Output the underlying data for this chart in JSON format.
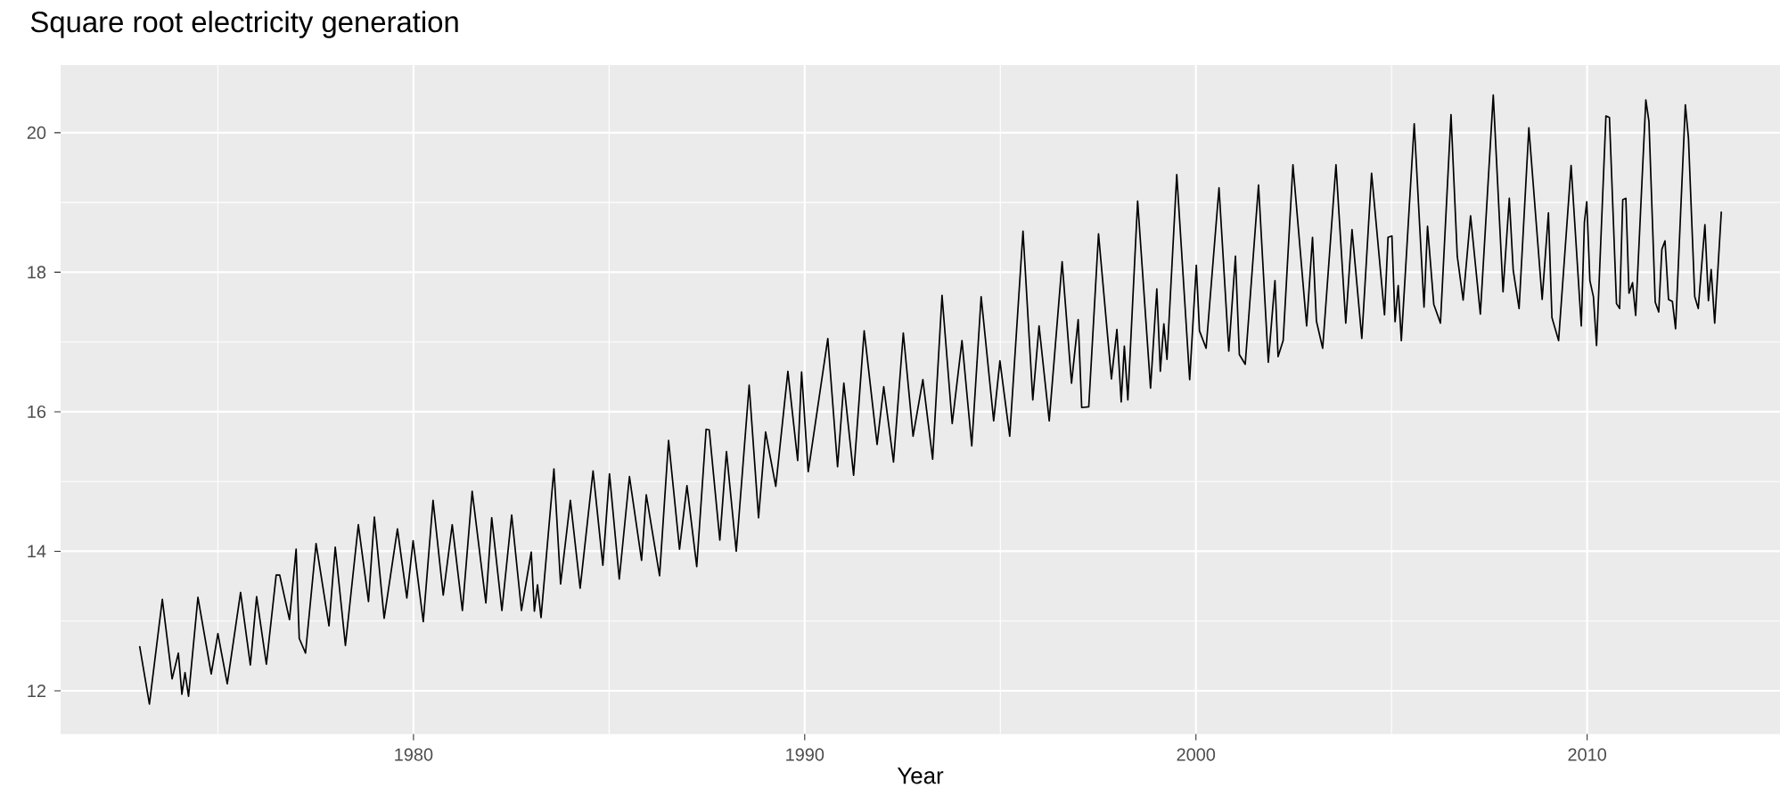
{
  "chart_data": {
    "type": "line",
    "title": "Square root electricity generation",
    "xlabel": "Year",
    "xlim": [
      1970.98,
      2014.93
    ],
    "ylim": [
      11.38,
      20.97
    ],
    "xticks": [
      1980,
      1990,
      2000,
      2010
    ],
    "yticks": [
      12,
      14,
      16,
      18,
      20
    ],
    "grid": true,
    "line_style": "solid",
    "color": "#000000",
    "x": [
      1973.0,
      1973.25,
      1973.58,
      1973.83,
      1973.99,
      1974.08,
      1974.16,
      1974.25,
      1974.49,
      1974.83,
      1975.0,
      1975.24,
      1975.58,
      1975.83,
      1975.99,
      1976.24,
      1976.49,
      1976.58,
      1976.83,
      1977.0,
      1977.08,
      1977.24,
      1977.51,
      1977.84,
      1978.0,
      1978.26,
      1978.59,
      1978.85,
      1979.0,
      1979.25,
      1979.59,
      1979.83,
      1979.99,
      1980.25,
      1980.5,
      1980.76,
      1980.99,
      1981.25,
      1981.5,
      1981.85,
      1982.0,
      1982.26,
      1982.51,
      1982.76,
      1983.01,
      1983.09,
      1983.17,
      1983.26,
      1983.59,
      1983.76,
      1984.01,
      1984.26,
      1984.59,
      1984.84,
      1985.01,
      1985.26,
      1985.52,
      1985.83,
      1985.95,
      1986.29,
      1986.52,
      1986.8,
      1986.99,
      1987.24,
      1987.48,
      1987.56,
      1987.83,
      1988.0,
      1988.25,
      1988.58,
      1988.82,
      1989.0,
      1989.26,
      1989.57,
      1989.82,
      1989.92,
      1990.09,
      1990.59,
      1990.84,
      1991.0,
      1991.25,
      1991.52,
      1991.85,
      1992.02,
      1992.27,
      1992.52,
      1992.77,
      1993.02,
      1993.27,
      1993.51,
      1993.77,
      1994.02,
      1994.27,
      1994.51,
      1994.83,
      1994.99,
      1995.24,
      1995.58,
      1995.83,
      1995.99,
      1996.25,
      1996.58,
      1996.82,
      1996.99,
      1997.08,
      1997.26,
      1997.51,
      1997.84,
      1997.98,
      1998.09,
      1998.17,
      1998.26,
      1998.51,
      1998.84,
      1999.0,
      1999.09,
      1999.18,
      1999.26,
      1999.51,
      1999.84,
      2000.01,
      2000.09,
      2000.26,
      2000.59,
      2000.84,
      2001.01,
      2001.11,
      2001.26,
      2001.6,
      2001.85,
      2002.02,
      2002.1,
      2002.23,
      2002.48,
      2002.83,
      2002.98,
      2003.08,
      2003.24,
      2003.58,
      2003.83,
      2003.99,
      2004.24,
      2004.49,
      2004.82,
      2004.91,
      2005.01,
      2005.09,
      2005.17,
      2005.25,
      2005.58,
      2005.83,
      2005.92,
      2006.08,
      2006.25,
      2006.52,
      2006.68,
      2006.83,
      2007.02,
      2007.27,
      2007.6,
      2007.85,
      2008.01,
      2008.11,
      2008.26,
      2008.51,
      2008.85,
      2009.01,
      2009.1,
      2009.27,
      2009.59,
      2009.85,
      2009.93,
      2009.99,
      2010.07,
      2010.16,
      2010.24,
      2010.48,
      2010.57,
      2010.75,
      2010.83,
      2010.91,
      2010.99,
      2011.07,
      2011.16,
      2011.24,
      2011.5,
      2011.58,
      2011.74,
      2011.83,
      2011.91,
      2011.99,
      2012.08,
      2012.18,
      2012.26,
      2012.51,
      2012.59,
      2012.75,
      2012.84,
      2013.01,
      2013.1,
      2013.17,
      2013.26,
      2013.43
    ],
    "values": [
      12.64,
      11.81,
      13.31,
      12.17,
      12.54,
      11.95,
      12.26,
      11.92,
      13.34,
      12.24,
      12.82,
      12.1,
      13.41,
      12.37,
      13.35,
      12.38,
      13.66,
      13.66,
      13.02,
      14.03,
      12.75,
      12.54,
      14.11,
      12.93,
      14.06,
      12.65,
      14.38,
      13.28,
      14.49,
      13.04,
      14.32,
      13.33,
      14.15,
      12.99,
      14.73,
      13.37,
      14.38,
      13.15,
      14.86,
      13.26,
      14.48,
      13.15,
      14.52,
      13.15,
      13.99,
      13.14,
      13.52,
      13.05,
      15.18,
      13.53,
      14.73,
      13.47,
      15.15,
      13.8,
      15.11,
      13.6,
      15.07,
      13.87,
      14.81,
      13.65,
      15.59,
      14.03,
      14.94,
      13.78,
      15.75,
      15.74,
      14.16,
      15.43,
      14.0,
      16.38,
      14.48,
      15.71,
      14.93,
      16.58,
      15.3,
      16.57,
      15.14,
      17.05,
      15.21,
      16.41,
      15.09,
      17.16,
      15.53,
      16.36,
      15.28,
      17.13,
      15.65,
      16.46,
      15.32,
      17.67,
      15.83,
      17.02,
      15.51,
      17.65,
      15.87,
      16.73,
      15.65,
      18.59,
      16.17,
      17.23,
      15.87,
      18.15,
      16.41,
      17.32,
      16.06,
      16.07,
      18.55,
      16.47,
      17.18,
      16.14,
      16.94,
      16.17,
      19.02,
      16.34,
      17.76,
      16.58,
      17.26,
      16.75,
      19.4,
      16.46,
      18.1,
      17.16,
      16.91,
      19.21,
      16.87,
      18.23,
      16.82,
      16.68,
      19.25,
      16.71,
      17.88,
      16.79,
      17.02,
      19.54,
      17.23,
      18.5,
      17.3,
      16.91,
      19.54,
      17.27,
      18.61,
      17.05,
      19.42,
      17.39,
      18.5,
      18.52,
      17.29,
      17.81,
      17.02,
      20.13,
      17.5,
      18.66,
      17.54,
      17.27,
      20.26,
      18.23,
      17.6,
      18.81,
      17.4,
      20.54,
      17.72,
      19.06,
      18.03,
      17.48,
      20.07,
      17.61,
      18.85,
      17.35,
      17.02,
      19.53,
      17.23,
      18.72,
      19.01,
      17.88,
      17.65,
      16.95,
      20.24,
      20.22,
      17.55,
      17.48,
      19.04,
      19.06,
      17.7,
      17.85,
      17.38,
      20.47,
      20.16,
      17.57,
      17.43,
      18.33,
      18.45,
      17.61,
      17.58,
      17.19,
      20.4,
      19.92,
      17.65,
      17.48,
      18.68,
      17.59,
      18.04,
      17.27,
      18.87
    ]
  }
}
